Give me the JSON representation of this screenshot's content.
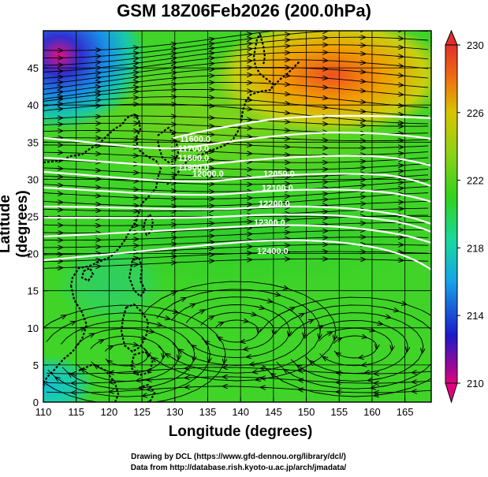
{
  "title": "GSM 18Z06Feb2026 (200.0hPa)",
  "x_axis": {
    "label": "Longitude (degrees)",
    "range": [
      110,
      169
    ],
    "ticks": [
      110,
      115,
      120,
      125,
      130,
      135,
      140,
      145,
      150,
      155,
      160,
      165
    ]
  },
  "y_axis": {
    "label": "Latitude  (degrees)",
    "range": [
      0,
      50
    ],
    "ticks": [
      0,
      5,
      10,
      15,
      20,
      25,
      30,
      35,
      40,
      45
    ]
  },
  "colorbar": {
    "range": [
      210,
      230
    ],
    "labels": [
      230,
      226,
      222,
      218,
      214,
      210
    ],
    "colors": [
      "#e0007f",
      "#1c18c8",
      "#16a2e8",
      "#18d8a0",
      "#32d21c",
      "#8ed216",
      "#d8c400",
      "#f07010",
      "#e0302a"
    ]
  },
  "contour_labels": [
    "11600.0",
    "11700.0",
    "11800.0",
    "11900.0",
    "12000.0",
    "12050.0",
    "12100.0",
    "12200.0",
    "12300.0",
    "12400.0"
  ],
  "credits": {
    "line1": "Drawing by DCL (https://www.gfd-dennou.org/library/dcl/)",
    "line2": "Data from http://database.rish.kyoto-u.ac.jp/arch/jmadata/"
  },
  "colors": {
    "contour": "#ffffff",
    "coast": "#000000",
    "grid": "#000000",
    "base_field": "#3fd427"
  }
}
